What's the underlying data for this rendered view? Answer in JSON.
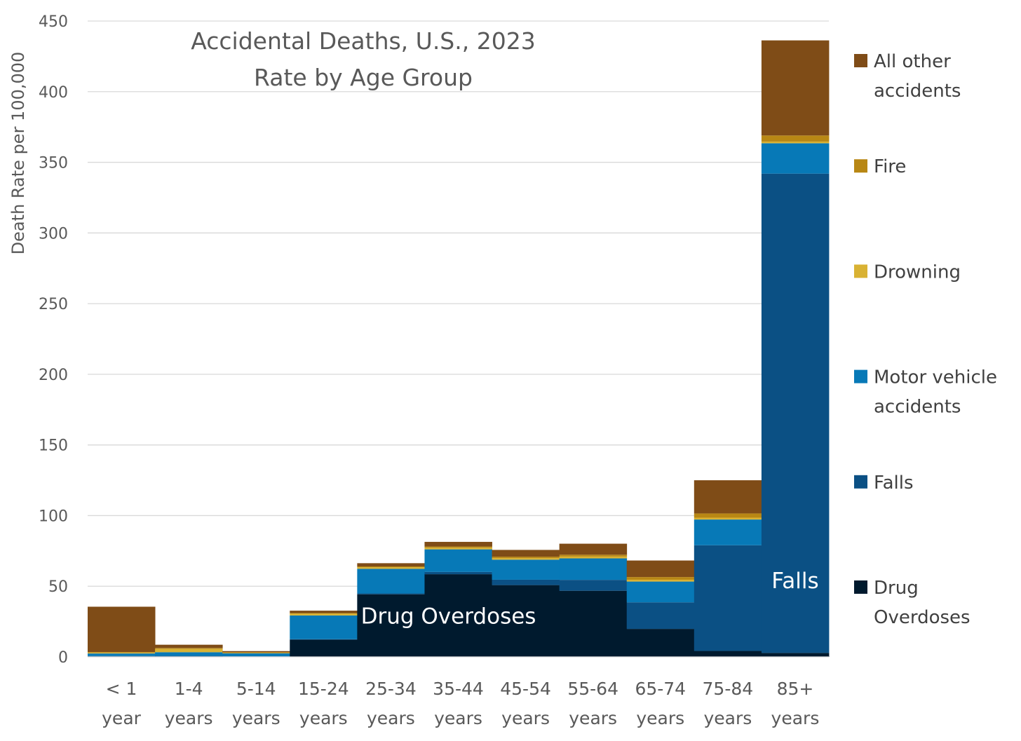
{
  "chart_data": {
    "type": "bar",
    "stacked": true,
    "title": [
      "Accidental Deaths, U.S., 2023",
      "Rate by Age Group"
    ],
    "ylabel": "Death Rate per 100,000",
    "ylim": [
      0,
      450
    ],
    "ytick_step": 50,
    "grid": true,
    "legend_position": "right",
    "categories": [
      [
        "< 1",
        "year"
      ],
      [
        "1-4",
        "years"
      ],
      [
        "5-14",
        "years"
      ],
      [
        "15-24",
        "years"
      ],
      [
        "25-34",
        "years"
      ],
      [
        "35-44",
        "years"
      ],
      [
        "45-54",
        "years"
      ],
      [
        "55-64",
        "years"
      ],
      [
        "65-74",
        "years"
      ],
      [
        "75-84",
        "years"
      ],
      [
        "85+",
        "years"
      ]
    ],
    "series": [
      {
        "name": [
          "Drug",
          "Overdoses"
        ],
        "color": "#001a2e",
        "values": [
          0.3,
          0.3,
          0.2,
          12.2,
          44.3,
          58.5,
          50.8,
          46.8,
          19.8,
          4.2,
          2.8
        ]
      },
      {
        "name": [
          "Falls"
        ],
        "color": "#0b5084",
        "values": [
          0.3,
          0.4,
          0.2,
          0.3,
          0.6,
          1.6,
          3.8,
          7.7,
          18.8,
          74.8,
          339.2
        ]
      },
      {
        "name": [
          "Motor vehicle",
          "accidents"
        ],
        "color": "#0779b7",
        "values": [
          1.8,
          2.6,
          2.1,
          16.8,
          17.4,
          16.0,
          14.2,
          15.2,
          14.7,
          18.2,
          21.5
        ]
      },
      {
        "name": [
          "Drowning"
        ],
        "color": "#d9b233",
        "values": [
          0.6,
          2.3,
          0.5,
          1.3,
          1.1,
          1.2,
          1.1,
          1.3,
          1.3,
          1.3,
          1.2
        ]
      },
      {
        "name": [
          "Fire"
        ],
        "color": "#b88714",
        "values": [
          0.4,
          0.7,
          0.2,
          0.4,
          0.6,
          0.8,
          1.0,
          1.3,
          1.9,
          3.0,
          4.3
        ]
      },
      {
        "name": [
          "All other",
          "accidents"
        ],
        "color": "#7f4c17",
        "values": [
          32.1,
          2.3,
          0.9,
          1.7,
          2.3,
          3.3,
          4.8,
          7.8,
          11.7,
          23.5,
          67.3
        ]
      }
    ],
    "annotations": [
      {
        "text": "Drug Overdoses",
        "category_index": 6,
        "value": 29
      },
      {
        "text": "Falls",
        "category_index": 10,
        "value": 54
      }
    ]
  }
}
